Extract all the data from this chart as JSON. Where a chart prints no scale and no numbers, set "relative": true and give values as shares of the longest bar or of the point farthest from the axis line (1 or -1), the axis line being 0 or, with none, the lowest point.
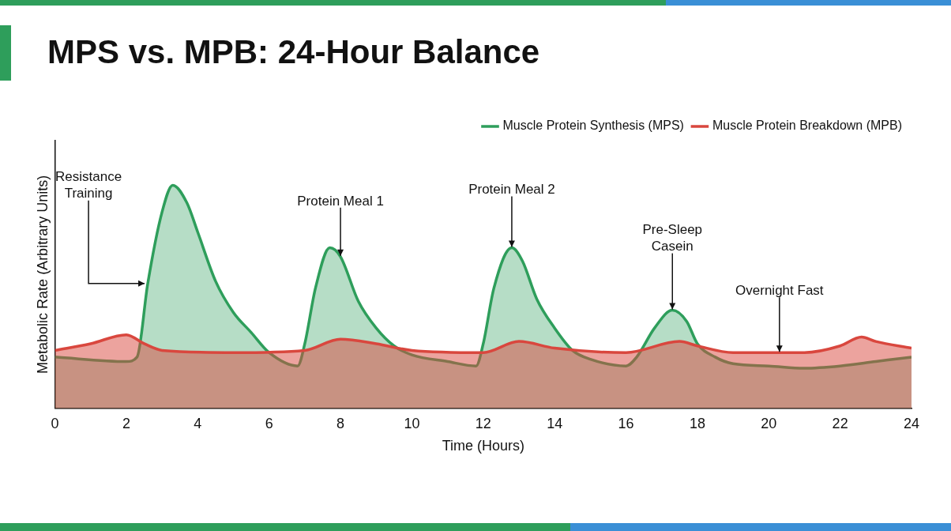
{
  "chart_data": {
    "type": "area",
    "title": "MPS vs. MPB: 24-Hour Balance",
    "xlabel": "Time (Hours)",
    "ylabel": "Metabolic Rate (Arbitrary Units)",
    "relative": true,
    "xlim": [
      0,
      24
    ],
    "xticks": [
      0,
      2,
      4,
      6,
      8,
      10,
      12,
      14,
      16,
      18,
      20,
      22,
      24
    ],
    "grid": false,
    "legend": "top right",
    "marker": "none",
    "line_style": "solid",
    "series": [
      {
        "name": "Muscle Protein Synthesis (MPS)",
        "color": "#2e9e5b",
        "x": [
          0,
          2,
          2.3,
          2.6,
          3,
          3.3,
          3.7,
          4,
          4.5,
          5,
          5.5,
          6,
          6.8,
          7,
          7.3,
          7.7,
          8,
          8.5,
          9,
          9.5,
          10,
          11,
          11.8,
          12,
          12.3,
          12.8,
          13.1,
          13.5,
          14,
          14.5,
          15,
          16,
          16.3,
          16.8,
          17.3,
          17.7,
          18,
          18.5,
          19,
          20,
          21,
          22,
          23,
          24
        ],
        "values": [
          0.23,
          0.21,
          0.23,
          0.56,
          0.88,
          1,
          0.92,
          0.79,
          0.57,
          0.43,
          0.34,
          0.25,
          0.19,
          0.29,
          0.54,
          0.72,
          0.68,
          0.48,
          0.36,
          0.28,
          0.24,
          0.21,
          0.19,
          0.29,
          0.54,
          0.72,
          0.66,
          0.49,
          0.36,
          0.26,
          0.22,
          0.19,
          0.23,
          0.36,
          0.44,
          0.39,
          0.29,
          0.23,
          0.2,
          0.19,
          0.18,
          0.19,
          0.21,
          0.23
        ]
      },
      {
        "name": "Muscle Protein Breakdown (MPB)",
        "color": "#d9473e",
        "x": [
          0,
          1,
          2,
          2.5,
          3,
          5,
          7,
          8,
          9,
          10,
          12,
          13,
          14,
          16,
          17.5,
          18,
          19,
          21,
          22,
          22.6,
          23,
          24
        ],
        "values": [
          0.26,
          0.29,
          0.33,
          0.29,
          0.26,
          0.25,
          0.26,
          0.31,
          0.29,
          0.26,
          0.25,
          0.3,
          0.27,
          0.25,
          0.3,
          0.28,
          0.25,
          0.25,
          0.28,
          0.32,
          0.3,
          0.27
        ]
      }
    ],
    "annotations": [
      {
        "text": "Resistance Training",
        "x": 2.6,
        "y": 0.56
      },
      {
        "text": "Protein Meal 1",
        "x": 8,
        "y": 0.68
      },
      {
        "text": "Protein Meal 2",
        "x": 12.8,
        "y": 0.72
      },
      {
        "text": "Pre-Sleep Casein",
        "x": 17.3,
        "y": 0.44
      },
      {
        "text": "Overnight Fast",
        "x": 20.3,
        "y": 0.25
      }
    ]
  }
}
